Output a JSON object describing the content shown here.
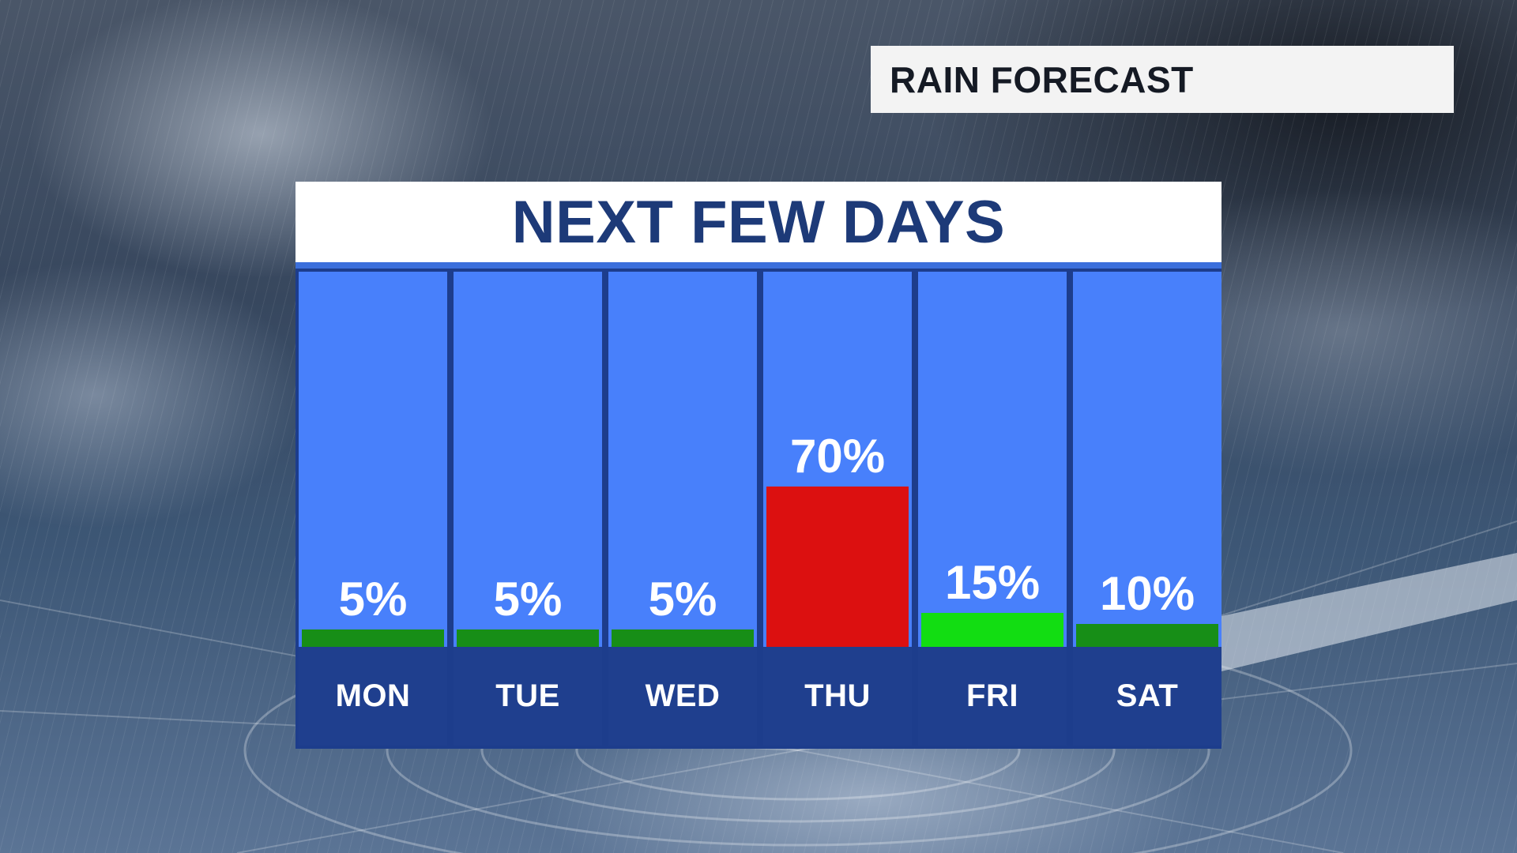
{
  "header": {
    "tag": "RAIN FORECAST"
  },
  "colors": {
    "title_text": "#1d3a78",
    "column_fill": "#4880fb",
    "day_box": "#1f3f8e",
    "low_bar": "#178e17",
    "fri_bar": "#12dd12",
    "high_bar": "#dc1010"
  },
  "chart_data": {
    "type": "bar",
    "title": "NEXT FEW DAYS",
    "categories": [
      "MON",
      "TUE",
      "WED",
      "THU",
      "FRI",
      "SAT"
    ],
    "values": [
      5,
      5,
      5,
      70,
      15,
      10
    ],
    "labels": [
      "5%",
      "5%",
      "5%",
      "70%",
      "15%",
      "10%"
    ],
    "bar_colors": [
      "#178e17",
      "#178e17",
      "#178e17",
      "#dc1010",
      "#12dd12",
      "#178e17"
    ],
    "ylim": [
      0,
      100
    ],
    "unit": "%",
    "grid": false
  }
}
